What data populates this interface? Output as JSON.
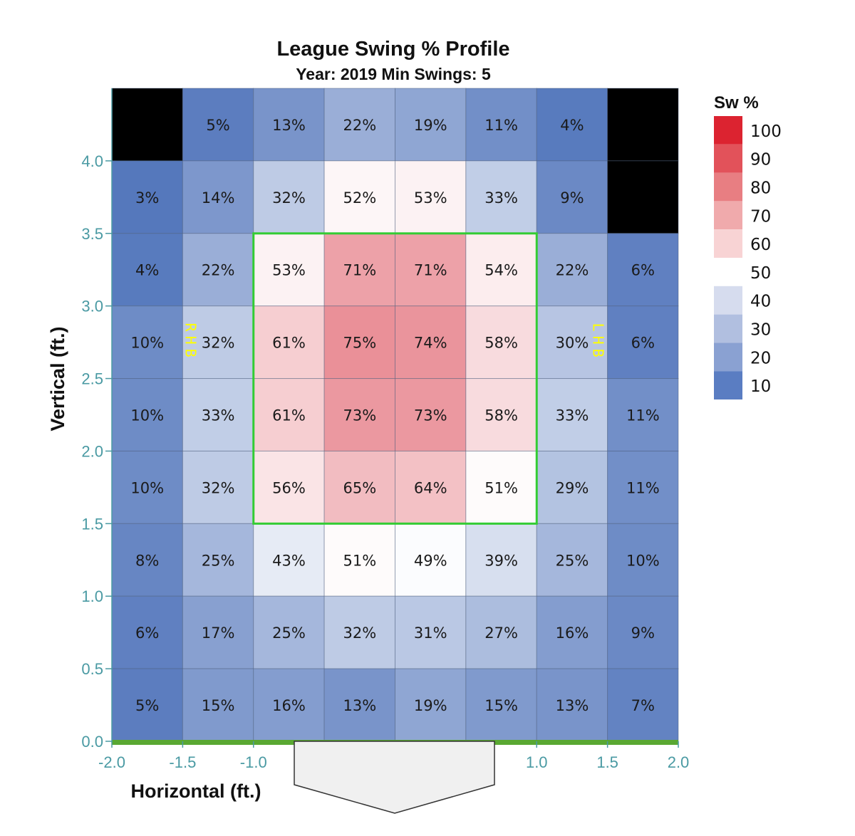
{
  "chart_data": {
    "type": "heatmap",
    "title": "League Swing % Profile",
    "subtitle": "Year: 2019 Min Swings: 5",
    "xlabel": "Horizontal (ft.)",
    "ylabel": "Vertical (ft.)",
    "xlim": [
      -2.0,
      2.0
    ],
    "ylim": [
      0.0,
      4.5
    ],
    "x_ticks": [
      "-2.0",
      "-1.5",
      "-1.0",
      "1.0",
      "1.5",
      "2.0"
    ],
    "x_tick_values": [
      -2.0,
      -1.5,
      -1.0,
      1.0,
      1.5,
      2.0
    ],
    "y_ticks": [
      "0.0",
      "0.5",
      "1.0",
      "1.5",
      "2.0",
      "2.5",
      "3.0",
      "3.5",
      "4.0"
    ],
    "y_tick_values": [
      0.0,
      0.5,
      1.0,
      1.5,
      2.0,
      2.5,
      3.0,
      3.5,
      4.0
    ],
    "x_bins": [
      -2.0,
      -1.5,
      -1.0,
      -0.5,
      0.0,
      0.5,
      1.0,
      1.5,
      2.0
    ],
    "y_bins_top_to_bottom": [
      4.5,
      4.0,
      3.5,
      3.0,
      2.5,
      2.0,
      1.5,
      1.0,
      0.5,
      0.0
    ],
    "values_top_to_bottom": [
      [
        null,
        5,
        13,
        22,
        19,
        11,
        4,
        null
      ],
      [
        3,
        14,
        32,
        52,
        53,
        33,
        9,
        null
      ],
      [
        4,
        22,
        53,
        71,
        71,
        54,
        22,
        6
      ],
      [
        10,
        32,
        61,
        75,
        74,
        58,
        30,
        6
      ],
      [
        10,
        33,
        61,
        73,
        73,
        58,
        33,
        11
      ],
      [
        10,
        32,
        56,
        65,
        64,
        51,
        29,
        11
      ],
      [
        8,
        25,
        43,
        51,
        49,
        39,
        25,
        10
      ],
      [
        6,
        17,
        25,
        32,
        31,
        27,
        16,
        9
      ],
      [
        5,
        15,
        16,
        13,
        19,
        15,
        13,
        7
      ]
    ],
    "value_suffix": "%",
    "strike_zone": {
      "x": [
        -1.0,
        1.0
      ],
      "y": [
        1.5,
        3.5
      ]
    },
    "side_labels": {
      "left": "RHB",
      "right": "LHB"
    },
    "legend": {
      "title": "Sw %",
      "placement": "right",
      "levels": [
        "100",
        "90",
        "80",
        "70",
        "60",
        "50",
        "40",
        "30",
        "20",
        "10"
      ],
      "colors": [
        "#dc2330",
        "#e2525a",
        "#e87e82",
        "#f0aaac",
        "#f8d3d4",
        "#ffffff",
        "#d6dcee",
        "#b1bfe0",
        "#8aa1d2",
        "#5a7dc2"
      ]
    },
    "colors": {
      "empty": "#000000",
      "cell_stops_low_to_high": {
        "0": "#4a6fb8",
        "50": "#ffffff",
        "100": "#d42030"
      },
      "strike_zone": "#33cc33",
      "tick": "#4a9aa3",
      "ground": "#5aa832",
      "side_label": "#ffff00"
    }
  }
}
